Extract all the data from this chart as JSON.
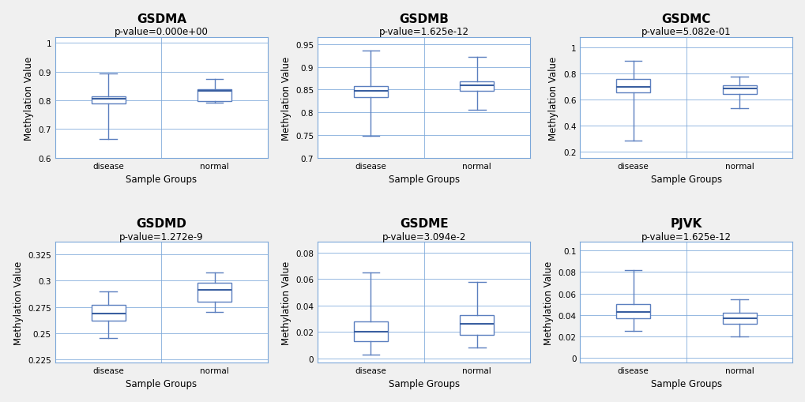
{
  "panels": [
    {
      "title": "GSDMA",
      "pvalue": "p-value=0.000e+00",
      "ylim": [
        0.6,
        1.02
      ],
      "yticks": [
        0.6,
        0.7,
        0.8,
        0.9,
        1.0
      ],
      "yticklabels": [
        "0.6",
        "0.7",
        "0.8",
        "0.9",
        "1"
      ],
      "disease": {
        "whislo": 0.665,
        "q1": 0.79,
        "med": 0.805,
        "q3": 0.815,
        "whishi": 0.893
      },
      "normal": {
        "whislo": 0.793,
        "q1": 0.798,
        "med": 0.833,
        "q3": 0.84,
        "whishi": 0.875
      }
    },
    {
      "title": "GSDMB",
      "pvalue": "p-value=1.625e-12",
      "ylim": [
        0.7,
        0.965
      ],
      "yticks": [
        0.7,
        0.75,
        0.8,
        0.85,
        0.9,
        0.95
      ],
      "yticklabels": [
        "0.7",
        "0.75",
        "0.8",
        "0.85",
        "0.9",
        "0.95"
      ],
      "disease": {
        "whislo": 0.748,
        "q1": 0.833,
        "med": 0.847,
        "q3": 0.858,
        "whishi": 0.935
      },
      "normal": {
        "whislo": 0.805,
        "q1": 0.848,
        "med": 0.86,
        "q3": 0.868,
        "whishi": 0.921
      }
    },
    {
      "title": "GSDMC",
      "pvalue": "p-value=5.082e-01",
      "ylim": [
        0.15,
        1.08
      ],
      "yticks": [
        0.2,
        0.4,
        0.6,
        0.8,
        1.0
      ],
      "yticklabels": [
        "0.2",
        "0.4",
        "0.6",
        "0.8",
        "1"
      ],
      "disease": {
        "whislo": 0.285,
        "q1": 0.655,
        "med": 0.695,
        "q3": 0.755,
        "whishi": 0.9
      },
      "normal": {
        "whislo": 0.533,
        "q1": 0.645,
        "med": 0.683,
        "q3": 0.71,
        "whishi": 0.775
      }
    },
    {
      "title": "GSDMD",
      "pvalue": "p-value=1.272e-9",
      "ylim": [
        0.222,
        0.337
      ],
      "yticks": [
        0.225,
        0.25,
        0.275,
        0.3,
        0.325
      ],
      "yticklabels": [
        "0.225",
        "0.25",
        "0.275",
        "0.3",
        "0.325"
      ],
      "disease": {
        "whislo": 0.245,
        "q1": 0.262,
        "med": 0.269,
        "q3": 0.277,
        "whishi": 0.29
      },
      "normal": {
        "whislo": 0.27,
        "q1": 0.28,
        "med": 0.291,
        "q3": 0.298,
        "whishi": 0.308
      }
    },
    {
      "title": "GSDME",
      "pvalue": "p-value=3.094e-2",
      "ylim": [
        -0.003,
        0.088
      ],
      "yticks": [
        0,
        0.02,
        0.04,
        0.06,
        0.08
      ],
      "yticklabels": [
        "0",
        "0.02",
        "0.04",
        "0.06",
        "0.08"
      ],
      "disease": {
        "whislo": 0.003,
        "q1": 0.013,
        "med": 0.02,
        "q3": 0.028,
        "whishi": 0.065
      },
      "normal": {
        "whislo": 0.008,
        "q1": 0.018,
        "med": 0.026,
        "q3": 0.033,
        "whishi": 0.058
      }
    },
    {
      "title": "PJVK",
      "pvalue": "p-value=1.625e-12",
      "ylim": [
        -0.004,
        0.108
      ],
      "yticks": [
        0,
        0.02,
        0.04,
        0.06,
        0.08,
        0.1
      ],
      "yticklabels": [
        "0",
        "0.02",
        "0.04",
        "0.06",
        "0.08",
        "0.1"
      ],
      "disease": {
        "whislo": 0.025,
        "q1": 0.037,
        "med": 0.043,
        "q3": 0.05,
        "whishi": 0.082
      },
      "normal": {
        "whislo": 0.02,
        "q1": 0.032,
        "med": 0.037,
        "q3": 0.042,
        "whishi": 0.055
      }
    }
  ],
  "box_color": "#5B7FBF",
  "box_facecolor": "white",
  "median_color": "#3A5FA0",
  "whisker_color": "#5B7FBF",
  "cap_color": "#5B7FBF",
  "grid_color": "#7BA7D9",
  "spine_color": "#7BA7D9",
  "xlabel": "Sample Groups",
  "ylabel": "Methylation Value",
  "categories": [
    "disease",
    "normal"
  ],
  "title_fontsize": 11,
  "label_fontsize": 8.5,
  "pvalue_fontsize": 8.5,
  "tick_fontsize": 7.5,
  "fig_facecolor": "#F0F0F0"
}
